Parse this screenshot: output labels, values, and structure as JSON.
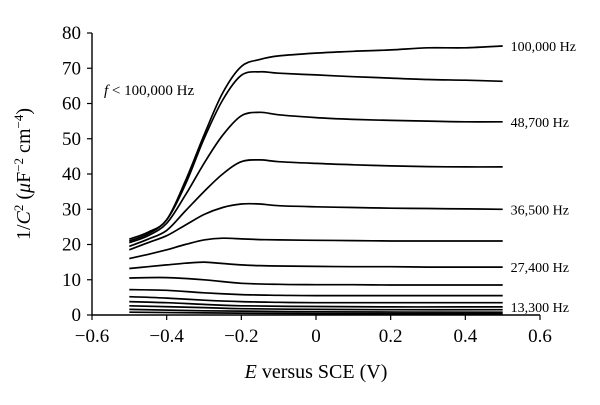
{
  "chart_data": {
    "type": "line",
    "xlabel_var": "E",
    "xlabel_rest": " versus SCE (V)",
    "ylabel_main": "1/",
    "ylabel_var": "C",
    "ylabel_sup": "2",
    "ylabel_open": " (",
    "ylabel_mu": "μ",
    "ylabel_F": "F",
    "ylabel_sup2": "−2",
    "ylabel_cm": " cm",
    "ylabel_sup3": "−4",
    "ylabel_close": ")",
    "annotation_var": "f",
    "annotation_rest": " < 100,000 Hz",
    "xlim": [
      -0.6,
      0.6
    ],
    "ylim": [
      0,
      80
    ],
    "xticks": [
      -0.6,
      -0.4,
      -0.2,
      0,
      0.2,
      0.4,
      0.6
    ],
    "xtick_labels": [
      "−0.6",
      "−0.4",
      "−0.2",
      "0",
      "0.2",
      "0.4",
      "0.6"
    ],
    "yticks": [
      0,
      10,
      20,
      30,
      40,
      50,
      60,
      70,
      80
    ],
    "ytick_labels": [
      "0",
      "10",
      "20",
      "30",
      "40",
      "50",
      "60",
      "70",
      "80"
    ],
    "series": [
      {
        "name": "100,000 Hz",
        "x": [
          -0.5,
          -0.45,
          -0.4,
          -0.35,
          -0.3,
          -0.25,
          -0.2,
          -0.15,
          -0.1,
          0,
          0.1,
          0.2,
          0.3,
          0.4,
          0.5
        ],
        "y": [
          21.5,
          23.5,
          27,
          38,
          51,
          63,
          70.5,
          72.5,
          73.5,
          74.3,
          74.8,
          75.2,
          75.8,
          75.8,
          76.3
        ]
      },
      {
        "name": "",
        "x": [
          -0.5,
          -0.45,
          -0.4,
          -0.35,
          -0.3,
          -0.25,
          -0.2,
          -0.15,
          -0.1,
          0,
          0.1,
          0.2,
          0.3,
          0.4,
          0.5
        ],
        "y": [
          21,
          23,
          27,
          37,
          50,
          61,
          68,
          69,
          68.6,
          68.1,
          67.6,
          67.2,
          66.8,
          66.6,
          66.3
        ]
      },
      {
        "name": "48,700 Hz",
        "x": [
          -0.5,
          -0.45,
          -0.4,
          -0.35,
          -0.3,
          -0.25,
          -0.2,
          -0.15,
          -0.1,
          0,
          0.1,
          0.2,
          0.3,
          0.4,
          0.5
        ],
        "y": [
          20.5,
          22.5,
          26,
          34,
          43,
          51,
          56.5,
          57.5,
          56.8,
          56,
          55.5,
          55.2,
          55,
          54.8,
          54.8
        ]
      },
      {
        "name": "",
        "x": [
          -0.5,
          -0.45,
          -0.4,
          -0.35,
          -0.3,
          -0.25,
          -0.2,
          -0.15,
          -0.1,
          0,
          0.1,
          0.2,
          0.3,
          0.4,
          0.5
        ],
        "y": [
          19.5,
          21.5,
          24,
          29.5,
          35,
          40,
          43.5,
          44,
          43.5,
          43,
          42.6,
          42.3,
          42.1,
          42,
          42
        ]
      },
      {
        "name": "36,500 Hz",
        "x": [
          -0.5,
          -0.45,
          -0.4,
          -0.35,
          -0.3,
          -0.25,
          -0.2,
          -0.15,
          -0.1,
          0,
          0.1,
          0.2,
          0.3,
          0.4,
          0.5
        ],
        "y": [
          18.5,
          20.5,
          22.5,
          25.5,
          28.5,
          30.5,
          31.5,
          31.5,
          31,
          30.7,
          30.5,
          30.3,
          30.2,
          30.1,
          30
        ]
      },
      {
        "name": "",
        "x": [
          -0.5,
          -0.45,
          -0.4,
          -0.35,
          -0.3,
          -0.25,
          -0.2,
          -0.15,
          -0.1,
          0,
          0.1,
          0.2,
          0.3,
          0.4,
          0.5
        ],
        "y": [
          16,
          17.2,
          18.5,
          20,
          21.3,
          21.8,
          21.6,
          21.4,
          21.3,
          21.2,
          21.1,
          21,
          21,
          21,
          21
        ]
      },
      {
        "name": "27,400 Hz",
        "x": [
          -0.5,
          -0.45,
          -0.4,
          -0.35,
          -0.3,
          -0.25,
          -0.2,
          -0.15,
          -0.1,
          0,
          0.1,
          0.2,
          0.3,
          0.4,
          0.5
        ],
        "y": [
          13.2,
          13.7,
          14.2,
          14.7,
          15,
          14.6,
          14.2,
          14,
          13.9,
          13.8,
          13.7,
          13.7,
          13.6,
          13.6,
          13.6
        ]
      },
      {
        "name": "",
        "x": [
          -0.5,
          -0.4,
          -0.3,
          -0.2,
          -0.1,
          0,
          0.1,
          0.2,
          0.3,
          0.4,
          0.5
        ],
        "y": [
          10.5,
          10.6,
          10,
          9,
          8.7,
          8.6,
          8.6,
          8.5,
          8.5,
          8.5,
          8.5
        ]
      },
      {
        "name": "",
        "x": [
          -0.5,
          -0.4,
          -0.3,
          -0.2,
          -0.1,
          0,
          0.2,
          0.4,
          0.5
        ],
        "y": [
          7.2,
          7,
          6.3,
          5.8,
          5.6,
          5.5,
          5.5,
          5.5,
          5.5
        ]
      },
      {
        "name": "",
        "x": [
          -0.5,
          -0.4,
          -0.3,
          -0.2,
          -0.1,
          0,
          0.2,
          0.4,
          0.5
        ],
        "y": [
          5.2,
          4.8,
          4.2,
          3.8,
          3.6,
          3.5,
          3.5,
          3.5,
          3.5
        ]
      },
      {
        "name": "13,300 Hz",
        "x": [
          -0.5,
          -0.4,
          -0.3,
          -0.2,
          0,
          0.2,
          0.4,
          0.5
        ],
        "y": [
          3.8,
          3.5,
          3,
          2.6,
          2.4,
          2.3,
          2.3,
          2.3
        ]
      },
      {
        "name": "",
        "x": [
          -0.5,
          -0.3,
          -0.2,
          0,
          0.2,
          0.5
        ],
        "y": [
          2.6,
          2.1,
          1.8,
          1.6,
          1.5,
          1.5
        ]
      },
      {
        "name": "",
        "x": [
          -0.5,
          -0.3,
          0,
          0.5
        ],
        "y": [
          1.6,
          1.2,
          0.9,
          0.8
        ]
      },
      {
        "name": "",
        "x": [
          -0.5,
          -0.3,
          0,
          0.5
        ],
        "y": [
          0.8,
          0.6,
          0.4,
          0.4
        ]
      }
    ]
  }
}
